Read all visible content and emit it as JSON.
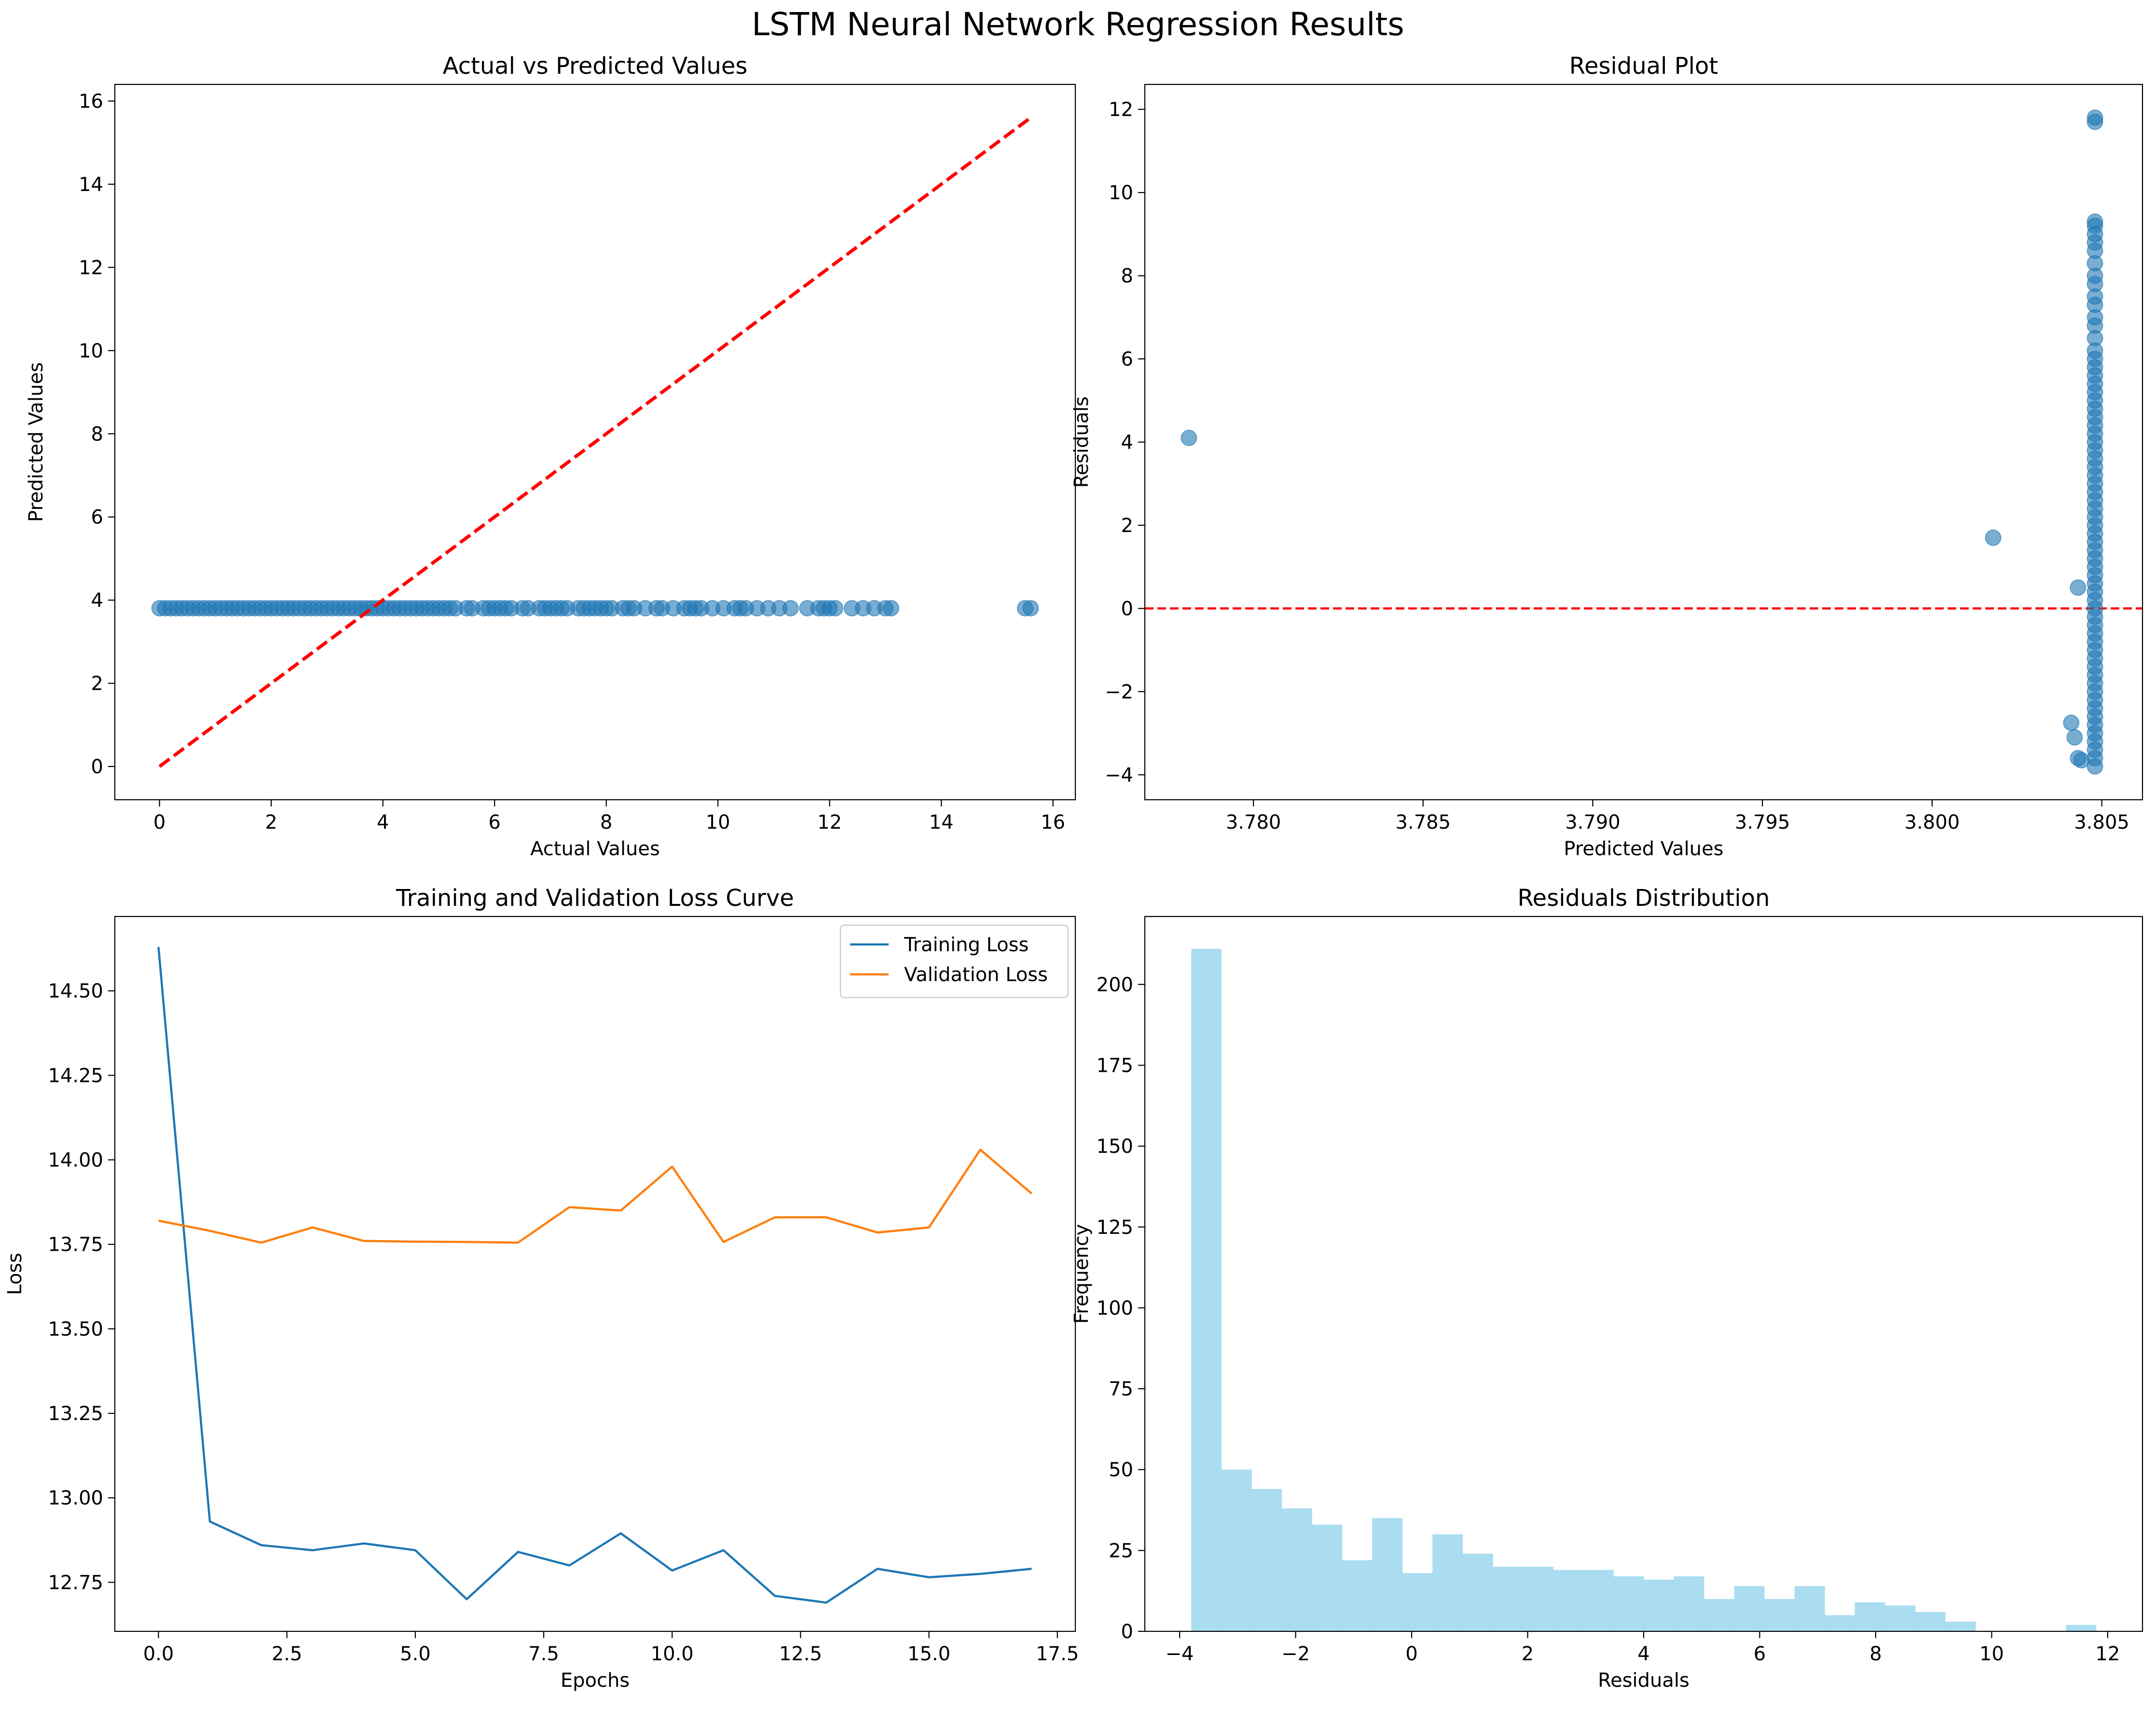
{
  "figure": {
    "suptitle": "LSTM Neural Network Regression Results"
  },
  "colors": {
    "scatter": "#1f77b4",
    "identity_line": "#ff0000",
    "training": "#1f77b4",
    "validation": "#ff7f0e",
    "histogram": "#87ceeb",
    "zero_line": "#ff0000"
  },
  "chart_data": [
    {
      "id": "actual-vs-predicted",
      "type": "scatter",
      "title": "Actual vs Predicted Values",
      "xlabel": "Actual Values",
      "ylabel": "Predicted Values",
      "xlim": [
        -0.8,
        16.4
      ],
      "ylim": [
        -0.8,
        16.4
      ],
      "xticks": [
        0,
        2,
        4,
        6,
        8,
        10,
        12,
        14,
        16
      ],
      "yticks": [
        0,
        2,
        4,
        6,
        8,
        10,
        12,
        14,
        16
      ],
      "reference_line": {
        "style": "dashed",
        "from": [
          0,
          0
        ],
        "to": [
          15.6,
          15.6
        ]
      },
      "x": [
        0.0,
        0.1,
        0.2,
        0.3,
        0.4,
        0.5,
        0.6,
        0.7,
        0.8,
        0.9,
        1.0,
        1.1,
        1.2,
        1.3,
        1.4,
        1.5,
        1.6,
        1.7,
        1.8,
        1.9,
        2.0,
        2.1,
        2.2,
        2.3,
        2.4,
        2.5,
        2.6,
        2.7,
        2.8,
        2.9,
        3.0,
        3.1,
        3.2,
        3.3,
        3.4,
        3.5,
        3.6,
        3.7,
        3.8,
        3.9,
        4.0,
        4.1,
        4.2,
        4.3,
        4.4,
        4.5,
        4.6,
        4.7,
        4.8,
        4.9,
        5.0,
        5.1,
        5.2,
        5.3,
        5.5,
        5.6,
        5.8,
        5.9,
        6.0,
        6.1,
        6.2,
        6.3,
        6.5,
        6.6,
        6.8,
        6.9,
        7.0,
        7.1,
        7.2,
        7.3,
        7.5,
        7.6,
        7.7,
        7.8,
        7.9,
        8.0,
        8.1,
        8.3,
        8.4,
        8.5,
        8.7,
        8.9,
        9.0,
        9.2,
        9.4,
        9.5,
        9.6,
        9.7,
        9.9,
        10.1,
        10.3,
        10.4,
        10.5,
        10.7,
        10.9,
        11.1,
        11.3,
        11.6,
        11.8,
        11.9,
        12.0,
        12.1,
        12.4,
        12.6,
        12.8,
        13.0,
        13.1,
        15.5,
        15.6
      ],
      "y": [
        3.805,
        3.805,
        3.805,
        3.805,
        3.805,
        3.805,
        3.805,
        3.805,
        3.805,
        3.805,
        3.805,
        3.805,
        3.805,
        3.805,
        3.805,
        3.805,
        3.805,
        3.805,
        3.805,
        3.805,
        3.805,
        3.805,
        3.805,
        3.805,
        3.805,
        3.805,
        3.805,
        3.805,
        3.805,
        3.805,
        3.805,
        3.805,
        3.805,
        3.805,
        3.805,
        3.805,
        3.805,
        3.805,
        3.805,
        3.805,
        3.805,
        3.805,
        3.805,
        3.805,
        3.805,
        3.805,
        3.805,
        3.805,
        3.805,
        3.805,
        3.805,
        3.805,
        3.805,
        3.805,
        3.805,
        3.805,
        3.805,
        3.805,
        3.805,
        3.805,
        3.805,
        3.805,
        3.805,
        3.805,
        3.805,
        3.805,
        3.805,
        3.805,
        3.805,
        3.805,
        3.805,
        3.805,
        3.805,
        3.805,
        3.805,
        3.805,
        3.805,
        3.805,
        3.805,
        3.805,
        3.805,
        3.805,
        3.805,
        3.805,
        3.805,
        3.805,
        3.805,
        3.805,
        3.805,
        3.805,
        3.805,
        3.805,
        3.805,
        3.805,
        3.805,
        3.805,
        3.805,
        3.805,
        3.805,
        3.805,
        3.805,
        3.805,
        3.805,
        3.805,
        3.805,
        3.805,
        3.805,
        3.805,
        3.805
      ]
    },
    {
      "id": "residual-plot",
      "type": "scatter",
      "title": "Residual Plot",
      "xlabel": "Predicted Values",
      "ylabel": "Residuals",
      "xlim": [
        3.7768,
        3.8062
      ],
      "ylim": [
        -4.6,
        12.6
      ],
      "xticks": [
        3.78,
        3.785,
        3.79,
        3.795,
        3.8,
        3.805
      ],
      "xticklabels": [
        "3.780",
        "3.785",
        "3.790",
        "3.795",
        "3.800",
        "3.805"
      ],
      "yticks": [
        -4,
        -2,
        0,
        2,
        4,
        6,
        8,
        10,
        12
      ],
      "yticklabels": [
        "−4",
        "−2",
        "0",
        "2",
        "4",
        "6",
        "8",
        "10",
        "12"
      ],
      "reference_line": {
        "style": "dashed",
        "y": 0
      },
      "x": [
        3.7781,
        3.8018,
        3.8043,
        3.8041,
        3.8042,
        3.8043,
        3.8044,
        3.8048,
        3.8048,
        3.8048,
        3.8048,
        3.8048,
        3.8048,
        3.8048,
        3.8048,
        3.8048,
        3.8048,
        3.8048,
        3.8048,
        3.8048,
        3.8048,
        3.8048,
        3.8048,
        3.8048,
        3.8048,
        3.8048,
        3.8048,
        3.8048,
        3.8048,
        3.8048,
        3.8048,
        3.8048,
        3.8048,
        3.8048,
        3.8048,
        3.8048,
        3.8048,
        3.8048,
        3.8048,
        3.8048,
        3.8048,
        3.8048,
        3.8048,
        3.8048,
        3.8048,
        3.8048,
        3.8048,
        3.8048,
        3.8048,
        3.8048,
        3.8048,
        3.8048,
        3.8048,
        3.8048,
        3.8048,
        3.8048,
        3.8048,
        3.8048,
        3.8048,
        3.8048,
        3.8048,
        3.8048,
        3.8048,
        3.8048,
        3.8048,
        3.8048,
        3.8048,
        3.8048,
        3.8048,
        3.8048,
        3.8048,
        3.8048,
        3.8048
      ],
      "y": [
        4.1,
        1.7,
        0.5,
        -2.75,
        -3.1,
        -3.6,
        -3.65,
        -3.8,
        -3.6,
        -3.4,
        -3.2,
        -3.0,
        -2.8,
        -2.6,
        -2.4,
        -2.2,
        -2.0,
        -1.8,
        -1.6,
        -1.4,
        -1.2,
        -1.0,
        -0.8,
        -0.6,
        -0.4,
        -0.2,
        0.0,
        0.2,
        0.4,
        0.6,
        0.8,
        1.0,
        1.2,
        1.4,
        1.6,
        1.8,
        2.0,
        2.2,
        2.4,
        2.6,
        2.8,
        3.0,
        3.2,
        3.4,
        3.6,
        3.8,
        4.0,
        4.2,
        4.4,
        4.6,
        4.8,
        5.0,
        5.2,
        5.4,
        5.6,
        5.8,
        6.0,
        6.2,
        6.5,
        6.8,
        7.0,
        7.3,
        7.5,
        7.8,
        8.0,
        8.3,
        8.6,
        8.8,
        9.0,
        9.2,
        9.3,
        11.7,
        11.8
      ]
    },
    {
      "id": "loss-curve",
      "type": "line",
      "title": "Training and Validation Loss Curve",
      "xlabel": "Epochs",
      "ylabel": "Loss",
      "xlim": [
        -0.85,
        17.85
      ],
      "ylim": [
        12.605,
        14.72
      ],
      "xticks": [
        0.0,
        2.5,
        5.0,
        7.5,
        10.0,
        12.5,
        15.0,
        17.5
      ],
      "xticklabels": [
        "0.0",
        "2.5",
        "5.0",
        "7.5",
        "10.0",
        "12.5",
        "15.0",
        "17.5"
      ],
      "yticks": [
        12.75,
        13.0,
        13.25,
        13.5,
        13.75,
        14.0,
        14.25,
        14.5
      ],
      "yticklabels": [
        "12.75",
        "13.00",
        "13.25",
        "13.50",
        "13.75",
        "14.00",
        "14.25",
        "14.50"
      ],
      "legend": "upper right",
      "x": [
        0,
        1,
        2,
        3,
        4,
        5,
        6,
        7,
        8,
        9,
        10,
        11,
        12,
        13,
        14,
        15,
        16,
        17
      ],
      "series": [
        {
          "name": "Training Loss",
          "values": [
            14.63,
            12.93,
            12.86,
            12.845,
            12.865,
            12.845,
            12.7,
            12.84,
            12.8,
            12.895,
            12.785,
            12.845,
            12.71,
            12.69,
            12.79,
            12.765,
            12.775,
            12.79
          ]
        },
        {
          "name": "Validation Loss",
          "values": [
            13.82,
            13.79,
            13.755,
            13.8,
            13.76,
            13.758,
            13.757,
            13.755,
            13.86,
            13.85,
            13.98,
            13.757,
            13.83,
            13.83,
            13.785,
            13.8,
            14.03,
            13.9
          ]
        }
      ]
    },
    {
      "id": "residuals-distribution",
      "type": "bar",
      "subtype": "histogram",
      "title": "Residuals Distribution",
      "xlabel": "Residuals",
      "ylabel": "Frequency",
      "xlim": [
        -4.6,
        12.6
      ],
      "ylim": [
        0,
        221
      ],
      "xticks": [
        -4,
        -2,
        0,
        2,
        4,
        6,
        8,
        10,
        12
      ],
      "xticklabels": [
        "−4",
        "−2",
        "0",
        "2",
        "4",
        "6",
        "8",
        "10",
        "12"
      ],
      "yticks": [
        0,
        25,
        50,
        75,
        100,
        125,
        150,
        175,
        200
      ],
      "bin_start": -3.8,
      "bin_width": 0.52,
      "values": [
        211,
        50,
        44,
        38,
        33,
        22,
        35,
        18,
        30,
        24,
        20,
        20,
        19,
        19,
        17,
        16,
        17,
        10,
        14,
        10,
        14,
        5,
        9,
        8,
        6,
        3,
        0,
        0,
        0,
        2
      ]
    }
  ]
}
